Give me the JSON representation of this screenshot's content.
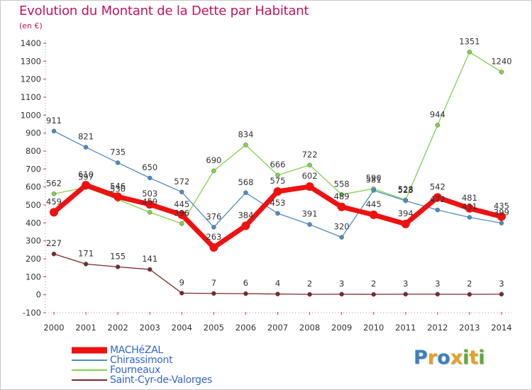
{
  "title": "Evolution du Montant de la Dette par Habitant",
  "subtitle": "(en €)",
  "logo": {
    "letters": [
      {
        "ch": "P",
        "color": "#3a7fc4"
      },
      {
        "ch": "r",
        "color": "#e8a020"
      },
      {
        "ch": "o",
        "color": "#3a7fc4"
      },
      {
        "ch": "x",
        "color": "#e8a020"
      },
      {
        "ch": "i",
        "color": "#5aaa3a"
      },
      {
        "ch": "t",
        "color": "#e8a020"
      },
      {
        "ch": "i",
        "color": "#5aaa3a"
      }
    ]
  },
  "chart_data": {
    "type": "line",
    "title": "Evolution du Montant de la Dette par Habitant",
    "ylabel": "(en €)",
    "xlabel": "",
    "x": [
      "2000",
      "2001",
      "2002",
      "2003",
      "2004",
      "2005",
      "2006",
      "2007",
      "2008",
      "2009",
      "2010",
      "2011",
      "2012",
      "2013",
      "2014"
    ],
    "ylim": [
      -100,
      1400
    ],
    "yticks": [
      "-100",
      "0",
      "100",
      "200",
      "300",
      "400",
      "500",
      "600",
      "700",
      "800",
      "900",
      "1000",
      "1100",
      "1200",
      "1300",
      "1400"
    ],
    "grid": false,
    "legend_position": "bottom-left",
    "series": [
      {
        "name": "MACHéZAL",
        "color": "#ee1111",
        "values": [
          459,
          610,
          546,
          503,
          445,
          263,
          384,
          575,
          602,
          489,
          445,
          394,
          542,
          481,
          435
        ],
        "labels": [
          "459",
          "610",
          "546",
          "503",
          "445",
          "263",
          "384",
          "575",
          "602",
          "489",
          "445",
          "394",
          "542",
          "481",
          "435"
        ]
      },
      {
        "name": "Chirassimont",
        "color": "#4e8cc4",
        "values": [
          911,
          821,
          735,
          650,
          572,
          376,
          568,
          453,
          391,
          320,
          581,
          523,
          472,
          431,
          399
        ],
        "labels": [
          "911",
          "821",
          "735",
          "650",
          "572",
          "376",
          "568",
          "453",
          "391",
          "320",
          "581",
          "523",
          "472",
          "431",
          "399"
        ]
      },
      {
        "name": "Fourneaux",
        "color": "#82d04e",
        "values": [
          562,
          597,
          530,
          459,
          396,
          690,
          834,
          666,
          722,
          558,
          590,
          528,
          944,
          1351,
          1240
        ],
        "labels": [
          "562",
          "597",
          "530",
          "459",
          "396",
          "690",
          "834",
          "666",
          "722",
          "558",
          "590",
          "528",
          "944",
          "1351",
          "1240"
        ]
      },
      {
        "name": "Saint-Cyr-de-Valorges",
        "color": "#7a2a2a",
        "values": [
          227,
          171,
          155,
          141,
          9,
          7,
          6,
          4,
          2,
          3,
          2,
          3,
          3,
          2,
          3
        ],
        "labels": [
          "227",
          "171",
          "155",
          "141",
          "9",
          "7",
          "6",
          "4",
          "2",
          "3",
          "2",
          "3",
          "3",
          "2",
          "3"
        ]
      }
    ]
  }
}
